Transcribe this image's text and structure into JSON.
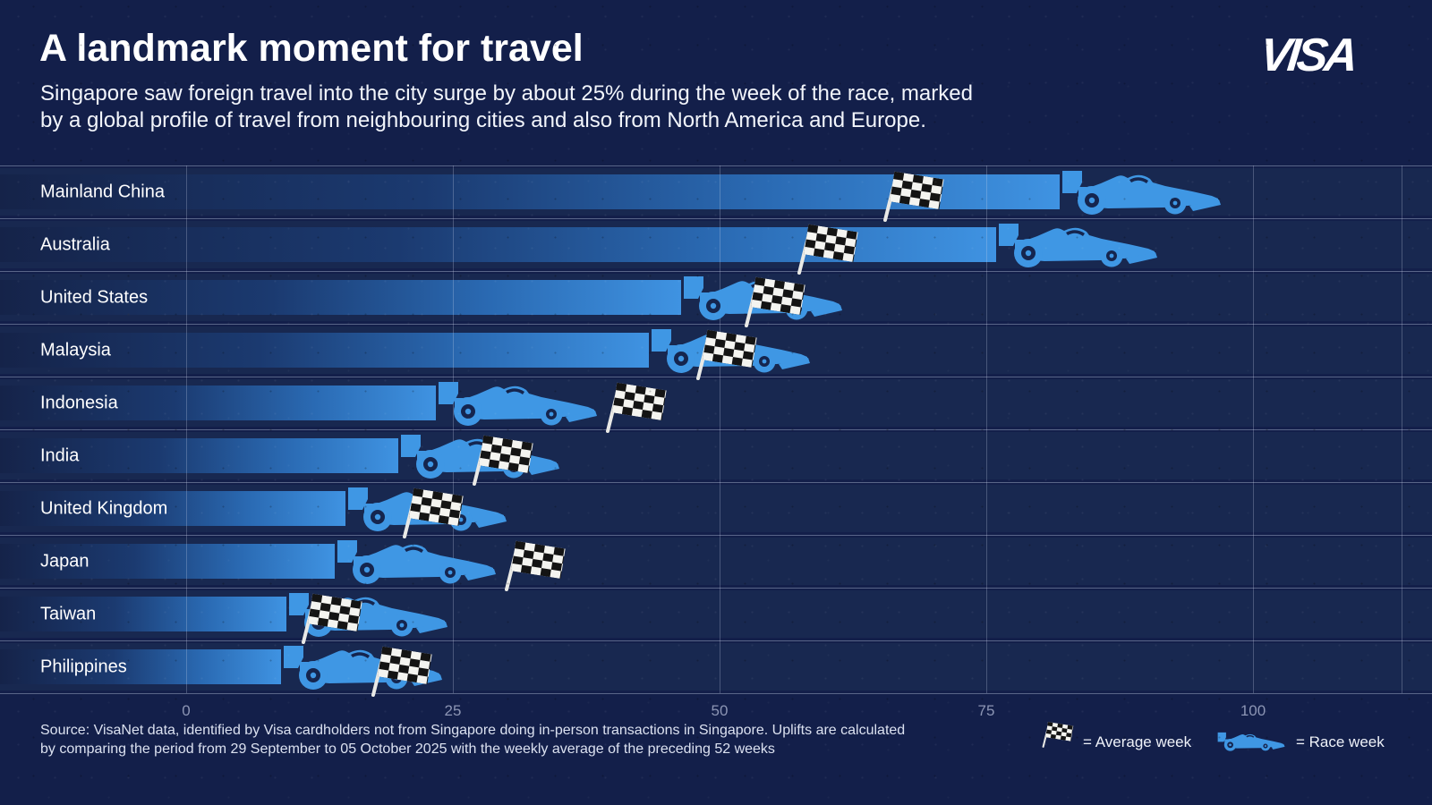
{
  "header": {
    "title": "A landmark moment for travel",
    "subtitle_line1": "Singapore saw foreign travel into the city surge by about 25% during the week of the race, marked",
    "subtitle_line2": "by a global profile of travel from neighbouring cities and also from North America and Europe.",
    "brand": "VISA"
  },
  "chart_data": {
    "type": "bar",
    "orientation": "horizontal",
    "title": "A landmark moment for travel",
    "categories": [
      "Mainland China",
      "Australia",
      "United States",
      "Malaysia",
      "Indonesia",
      "India",
      "United Kingdom",
      "Japan",
      "Taiwan",
      "Philippines"
    ],
    "series": [
      {
        "name": "Race week",
        "marker": "race-car-icon",
        "values": [
          97,
          91,
          61.5,
          58.5,
          38.5,
          35,
          30,
          29,
          24.5,
          24
        ]
      },
      {
        "name": "Average week",
        "marker": "checkered-flag-icon",
        "values": [
          65.5,
          57.5,
          52.5,
          48,
          39.5,
          27,
          20.5,
          30,
          11,
          17.5
        ]
      }
    ],
    "x_ticks": [
      0,
      25,
      50,
      75,
      100
    ],
    "xlim": [
      0,
      117
    ],
    "grid": "vertical-gridlines-and-row-separator-lines",
    "legend_position": "bottom-right"
  },
  "legend": {
    "average_label": "= Average week",
    "race_label": "= Race week"
  },
  "footer": {
    "source_line1": "Source: VisaNet data, identified by Visa cardholders not from Singapore doing in-person transactions in Singapore. Uplifts are calculated",
    "source_line2": "by comparing the period from 29 September to 05 October 2025 with the weekly average of the preceding 52 weeks"
  },
  "colors": {
    "background": "#131f4a",
    "row_band": "#182850",
    "bar_bright_end": "#3f93e2",
    "car_blue": "#3f97e4",
    "wheel_hole": "#15254e",
    "axis_text": "#8c95b4",
    "footer_text": "#dbe1f0",
    "title_text": "#ffffff"
  }
}
